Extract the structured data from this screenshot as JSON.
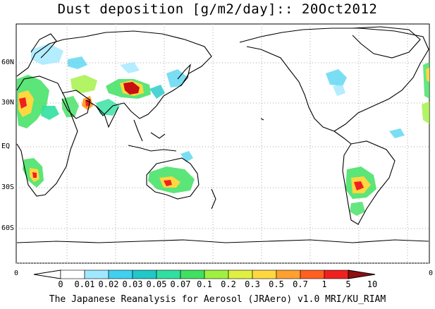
{
  "title": "Dust deposition [g/m2/day]:: 20Oct2012",
  "lat_labels": [
    "60N",
    "30N",
    "EQ",
    "30S",
    "60S"
  ],
  "colorbar": {
    "labels": [
      "0",
      "0.01",
      "0.02",
      "0.03",
      "0.05",
      "0.07",
      "0.1",
      "0.2",
      "0.3",
      "0.5",
      "0.7",
      "1",
      "5",
      "10"
    ],
    "colors": [
      "#ffffff",
      "#a0e8ff",
      "#40d0f0",
      "#20c8c8",
      "#30e0a0",
      "#40e060",
      "#a0f040",
      "#e0f040",
      "#ffd840",
      "#ffa030",
      "#ff6020",
      "#f02020",
      "#c81010",
      "#901010"
    ],
    "left_value": "0",
    "right_value": "0"
  },
  "footer": "The Japanese Reanalysis for Aerosol (JRAero) v1.0 MRI/KU_RIAM"
}
